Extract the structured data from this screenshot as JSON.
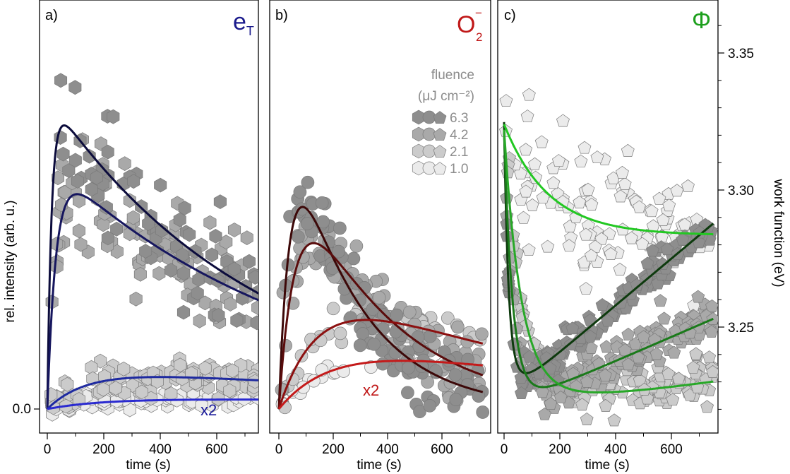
{
  "colors": {
    "marker_6_3": "#8e8e8e",
    "marker_4_2": "#a9a9a9",
    "marker_2_1": "#cbcbcb",
    "marker_1_0": "#ebebeb",
    "eT_fits": [
      "#0c0c3c",
      "#16165e",
      "#1e2aa0",
      "#2a2ad0"
    ],
    "O2_fits": [
      "#3c0808",
      "#5a0c0c",
      "#8c1010",
      "#c41a1a"
    ],
    "phi_fits": [
      "#0e3a0e",
      "#1a7a1a",
      "#28a828",
      "#22c822"
    ]
  },
  "chart_data": [
    {
      "type": "scatter",
      "panel_label": "a)",
      "title_main": "e",
      "title_sub": "T",
      "title_color": "#1a1a8c",
      "xlabel": "time (s)",
      "ylabel": "rel. intensity (arb. u.)",
      "xlim": [
        -40,
        760
      ],
      "ylim": [
        -0.04,
        1.0
      ],
      "xticks": [
        0,
        200,
        400,
        600
      ],
      "xtick_labels": [
        "0",
        "200",
        "400",
        "600"
      ],
      "yticks": [
        0.0
      ],
      "ytick_labels": [
        "0.0"
      ],
      "marker": "hexagon",
      "annotation": {
        "text": "x2",
        "x": 305,
        "y": 0.0,
        "color": "#1a1a9a"
      },
      "series": [
        {
          "name": "6.3",
          "fit": {
            "A": 0.765,
            "t1": 15,
            "t2": 750
          },
          "scatter": {
            "n": 75,
            "spread": 0.075,
            "seed": 11,
            "start": 5
          }
        },
        {
          "name": "4.2",
          "fit": {
            "A": 0.61,
            "t1": 30,
            "t2": 900
          },
          "scatter": {
            "n": 95,
            "spread": 0.06,
            "seed": 23,
            "start": 5
          }
        },
        {
          "name": "2.1",
          "fit": {
            "A": 0.1025,
            "t1": 140,
            "t2": 2000
          },
          "scatter": {
            "n": 110,
            "spread": 0.02,
            "seed": 37,
            "start": 0
          }
        },
        {
          "name": "1.0",
          "fit": {
            "A": 0.0275,
            "t1": 200,
            "t2": 5000
          },
          "scatter": {
            "n": 90,
            "spread": 0.01,
            "seed": 41,
            "start": 0
          }
        }
      ]
    },
    {
      "type": "scatter",
      "panel_label": "b)",
      "title_main": "O",
      "title_sub": "2",
      "title_sup": "−",
      "title_color": "#c01818",
      "xlabel": "time (s)",
      "xlim": [
        -40,
        760
      ],
      "ylim": [
        -0.04,
        1.0
      ],
      "xticks": [
        0,
        200,
        400,
        600
      ],
      "xtick_labels": [
        "0",
        "200",
        "400",
        "600"
      ],
      "marker": "circle",
      "annotation": {
        "text": "x2",
        "x": 350,
        "y": 0.035,
        "color": "#c01818"
      },
      "legend": {
        "title_lines": [
          "fluence",
          "(μJ cm⁻²)"
        ],
        "entries": [
          {
            "label": "6.3",
            "color": "#8e8e8e"
          },
          {
            "label": "4.2",
            "color": "#a9a9a9"
          },
          {
            "label": "2.1",
            "color": "#cbcbcb"
          },
          {
            "label": "1.0",
            "color": "#ebebeb"
          }
        ]
      },
      "series": [
        {
          "name": "6.3",
          "fit": {
            "A": 0.8325,
            "t1": 40,
            "t2": 250
          },
          "scatter": {
            "n": 120,
            "spread": 0.05,
            "seed": 53,
            "start": 5
          }
        },
        {
          "name": "4.2",
          "fit": {
            "A": 0.7038,
            "t1": 60,
            "t2": 350
          },
          "scatter": {
            "n": 110,
            "spread": 0.04,
            "seed": 59,
            "start": 5
          }
        },
        {
          "name": "2.1",
          "fit": {
            "A": 0.3733,
            "t1": 150,
            "t2": 900
          },
          "scatter": {
            "n": 45,
            "spread": 0.025,
            "seed": 67,
            "start": 5
          }
        },
        {
          "name": "1.0",
          "fit": {
            "A": 0.1898,
            "t1": 200,
            "t2": 1400
          },
          "scatter": {
            "n": 25,
            "spread": 0.012,
            "seed": 71,
            "start": 5
          }
        }
      ]
    },
    {
      "type": "scatter",
      "panel_label": "c)",
      "title_main": "Φ",
      "title_color": "#1ea01e",
      "xlabel": "time (s)",
      "ylabel_right": "work function (eV)",
      "xlim": [
        -40,
        760
      ],
      "ylim": [
        3.213,
        3.367
      ],
      "xticks": [
        0,
        200,
        400,
        600
      ],
      "xtick_labels": [
        "0",
        "200",
        "400",
        "600"
      ],
      "yticks": [
        3.25,
        3.3,
        3.35
      ],
      "ytick_labels": [
        "3.25",
        "3.30",
        "3.35"
      ],
      "marker": "pentagon",
      "series": [
        {
          "name": "6.3",
          "fit": {
            "base": 3.2398,
            "Ad": 0.085,
            "td": 15,
            "Ar": 0.087,
            "tr": 0
          },
          "scatter": {
            "n": 160,
            "spread": 0.003,
            "seed": 83,
            "start": 5
          }
        },
        {
          "name": "4.2",
          "fit": {
            "base": 3.226,
            "Ad": 0.095,
            "td": 30,
            "Ar": 0.05,
            "tr": 50
          },
          "scatter": {
            "n": 180,
            "spread": 0.004,
            "seed": 89,
            "start": 5
          }
        },
        {
          "name": "2.1",
          "fit": {
            "base": 3.23,
            "Ad": 0.094,
            "td": 60,
            "Ar": 0.0,
            "tr": 0,
            "lin": 8.55e-06
          },
          "scatter": {
            "n": 150,
            "spread": 0.005,
            "seed": 97,
            "start": 5
          }
        },
        {
          "name": "1.0",
          "fit": {
            "base": 3.285,
            "Ad": 0.0424,
            "td": 180,
            "Ar": 0.0,
            "tr": 0
          },
          "scatter": {
            "n": 110,
            "spread": 0.012,
            "seed": 101,
            "start": 5
          }
        }
      ]
    }
  ]
}
